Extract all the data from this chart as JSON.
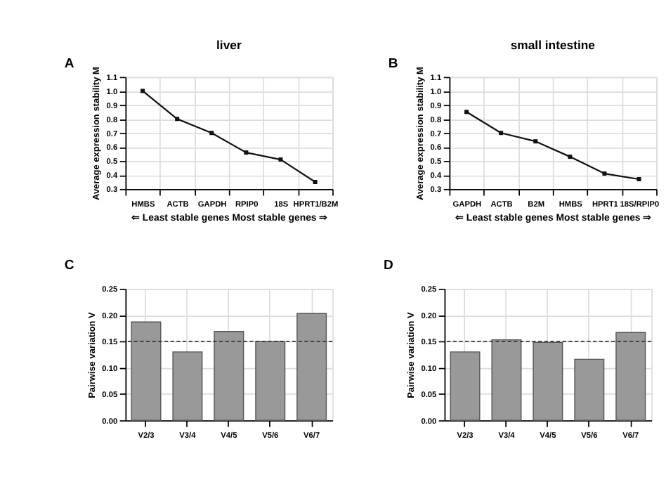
{
  "chart_data": [
    {
      "type": "line",
      "title": "liver",
      "annotations": [
        "A"
      ],
      "xlabel": "⇐ Least stable genes     Most stable genes ⇒",
      "ylabel": "Average expression stability M",
      "categories": [
        "HMBS",
        "ACTB",
        "GAPDH",
        "RPIP0",
        "18S",
        "HPRT1/B2M"
      ],
      "values": [
        1.0,
        0.8,
        0.7,
        0.56,
        0.51,
        0.35
      ],
      "color": "#111111",
      "marker": "square",
      "grid": true,
      "ylim": [
        0.3,
        1.1
      ],
      "yticks": [
        0.3,
        0.4,
        0.5,
        0.6,
        0.7,
        0.8,
        0.9,
        {
          "value": 1.0,
          "label": "1.0"
        },
        1.1
      ]
    },
    {
      "type": "line",
      "title": "small intestine",
      "annotations": [
        "B"
      ],
      "xlabel": "⇐ Least stable genes     Most stable genes ⇒",
      "ylabel": "Average expression stability M",
      "categories": [
        "GAPDH",
        "ACTB",
        "B2M",
        "HMBS",
        "HPRT1",
        "18S/RPIP0"
      ],
      "values": [
        0.85,
        0.7,
        0.64,
        0.53,
        0.41,
        0.37
      ],
      "color": "#111111",
      "marker": "square",
      "grid": true,
      "ylim": [
        0.3,
        1.1
      ],
      "yticks": [
        0.3,
        0.4,
        0.5,
        0.6,
        0.7,
        0.8,
        0.9,
        {
          "value": 1.0,
          "label": "1.0"
        },
        1.1
      ]
    },
    {
      "type": "bar",
      "annotations": [
        "C"
      ],
      "ylabel": "Pairwise variation V",
      "categories": [
        "V2/3",
        "V3/4",
        "V4/5",
        "V5/6",
        "V6/7"
      ],
      "values": [
        0.187,
        0.13,
        0.169,
        0.15,
        0.203
      ],
      "color": "#999999",
      "grid": true,
      "ylim": [
        0,
        0.25
      ],
      "yticks": [
        {
          "value": 0,
          "label": "0.00"
        },
        0.05,
        {
          "value": 0.1,
          "label": "0.10"
        },
        0.15,
        {
          "value": 0.2,
          "label": "0.20"
        },
        0.25
      ],
      "ref_lines": [
        {
          "axis": "y",
          "value": 0.15,
          "color": "#333333",
          "line_style": "dashed"
        }
      ]
    },
    {
      "type": "bar",
      "annotations": [
        "D"
      ],
      "ylabel": "Pairwise variation V",
      "categories": [
        "V2/3",
        "V3/4",
        "V4/5",
        "V5/6",
        "V6/7"
      ],
      "values": [
        0.13,
        0.153,
        0.148,
        0.116,
        0.167
      ],
      "color": "#999999",
      "grid": true,
      "ylim": [
        0,
        0.25
      ],
      "yticks": [
        {
          "value": 0,
          "label": "0.00"
        },
        0.05,
        {
          "value": 0.1,
          "label": "0.10"
        },
        0.15,
        {
          "value": 0.2,
          "label": "0.20"
        },
        0.25
      ],
      "ref_lines": [
        {
          "axis": "y",
          "value": 0.15,
          "color": "#333333",
          "line_style": "dashed"
        }
      ]
    }
  ]
}
